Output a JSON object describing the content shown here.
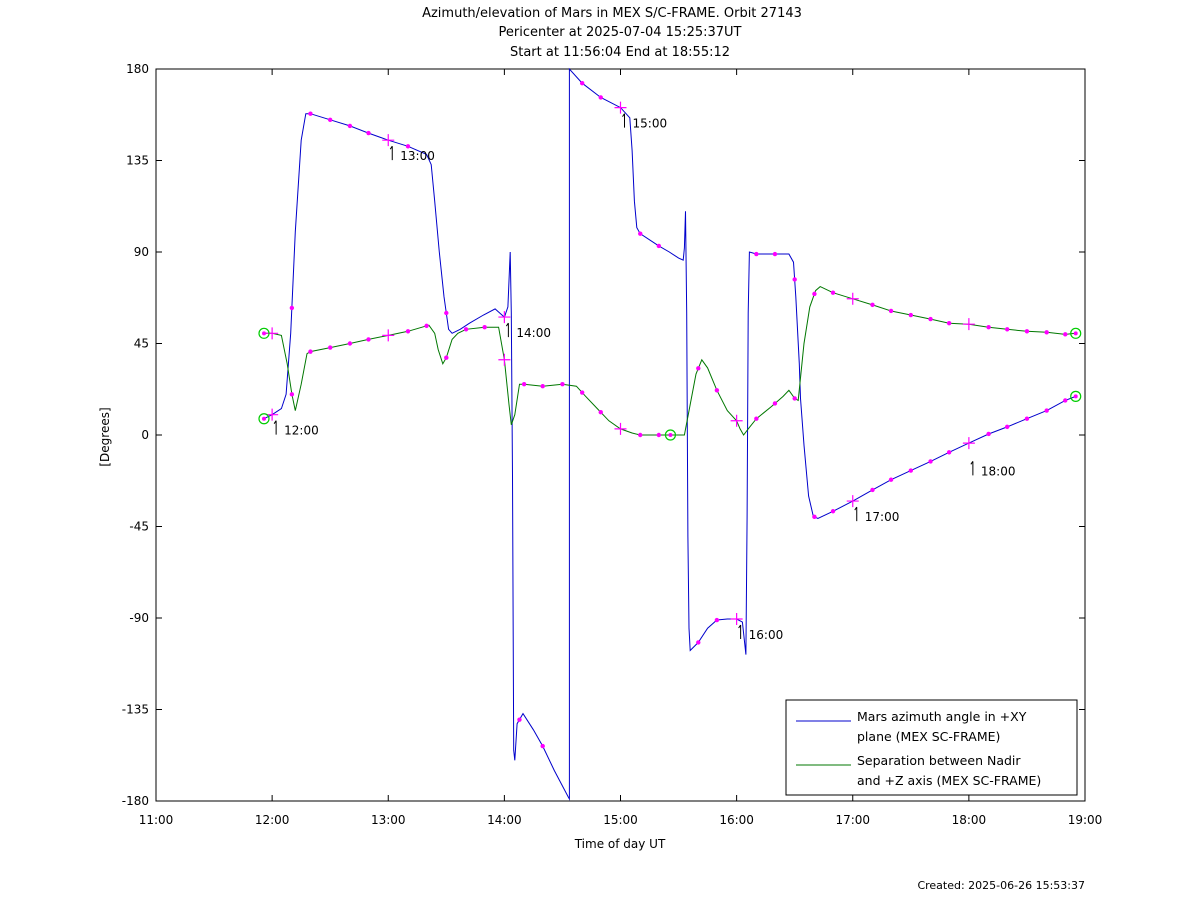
{
  "figure": {
    "title_lines": [
      "Azimuth/elevation of Mars in MEX S/C-FRAME.  Orbit 27143",
      "Pericenter at 2025-07-04 15:25:37UT",
      "Start at 11:56:04 End at 18:55:12"
    ],
    "footer": "Created: 2025-06-26 15:53:37"
  },
  "chart_data": {
    "type": "line",
    "title": "Azimuth/elevation of Mars in MEX S/C-FRAME.  Orbit 27143",
    "xlabel": "Time of day UT",
    "ylabel": "[Degrees]",
    "xlim": [
      11.0,
      19.0
    ],
    "ylim": [
      -180,
      180
    ],
    "x_ticks": [
      {
        "v": 11,
        "label": "11:00"
      },
      {
        "v": 12,
        "label": "12:00"
      },
      {
        "v": 13,
        "label": "13:00"
      },
      {
        "v": 14,
        "label": "14:00"
      },
      {
        "v": 15,
        "label": "15:00"
      },
      {
        "v": 16,
        "label": "16:00"
      },
      {
        "v": 17,
        "label": "17:00"
      },
      {
        "v": 18,
        "label": "18:00"
      },
      {
        "v": 19,
        "label": "19:00"
      }
    ],
    "y_ticks": [
      {
        "v": 180,
        "label": "180"
      },
      {
        "v": 135,
        "label": "135"
      },
      {
        "v": 90,
        "label": "90"
      },
      {
        "v": 45,
        "label": "45"
      },
      {
        "v": 0,
        "label": "0"
      },
      {
        "v": -45,
        "label": "-45"
      },
      {
        "v": -90,
        "label": "-90"
      },
      {
        "v": -135,
        "label": "-135"
      },
      {
        "v": -180,
        "label": "-180"
      }
    ],
    "grid": false,
    "legend_position": "bottom-right",
    "series": [
      {
        "name": "Mars azimuth angle in +XY plane (MEX SC-FRAME)",
        "legend_lines": [
          "Mars azimuth angle in +XY",
          "plane (MEX SC-FRAME)"
        ],
        "color": "#0000cc",
        "points": [
          [
            11.93,
            8
          ],
          [
            12.0,
            10
          ],
          [
            12.08,
            13
          ],
          [
            12.12,
            20
          ],
          [
            12.16,
            50
          ],
          [
            12.2,
            100
          ],
          [
            12.25,
            145
          ],
          [
            12.29,
            158
          ],
          [
            12.33,
            158
          ],
          [
            12.5,
            155
          ],
          [
            12.67,
            152
          ],
          [
            12.83,
            148.5
          ],
          [
            13.0,
            145
          ],
          [
            13.17,
            142
          ],
          [
            13.33,
            138
          ],
          [
            13.37,
            133
          ],
          [
            13.4,
            115
          ],
          [
            13.44,
            90
          ],
          [
            13.48,
            68
          ],
          [
            13.52,
            52
          ],
          [
            13.55,
            50
          ],
          [
            13.62,
            52
          ],
          [
            13.7,
            55
          ],
          [
            13.82,
            59
          ],
          [
            13.92,
            62
          ],
          [
            13.96,
            60
          ],
          [
            14.0,
            58
          ],
          [
            14.03,
            63
          ],
          [
            14.05,
            90
          ],
          [
            14.06,
            60
          ],
          [
            14.07,
            -20
          ],
          [
            14.08,
            -155
          ],
          [
            14.09,
            -160
          ],
          [
            14.11,
            -142
          ],
          [
            14.16,
            -137
          ],
          [
            14.25,
            -145
          ],
          [
            14.33,
            -153
          ],
          [
            14.43,
            -165
          ],
          [
            14.55,
            -178
          ],
          [
            14.56,
            -179
          ],
          [
            14.56,
            180
          ],
          [
            14.67,
            173
          ],
          [
            14.83,
            166
          ],
          [
            15.0,
            161
          ],
          [
            15.08,
            156
          ],
          [
            15.1,
            140
          ],
          [
            15.12,
            115
          ],
          [
            15.14,
            102
          ],
          [
            15.17,
            99
          ],
          [
            15.33,
            93
          ],
          [
            15.42,
            90
          ],
          [
            15.5,
            87
          ],
          [
            15.54,
            86
          ],
          [
            15.55,
            92
          ],
          [
            15.56,
            110
          ],
          [
            15.57,
            60
          ],
          [
            15.58,
            -50
          ],
          [
            15.59,
            -95
          ],
          [
            15.6,
            -106
          ],
          [
            15.67,
            -102
          ],
          [
            15.75,
            -95
          ],
          [
            15.83,
            -91
          ],
          [
            15.92,
            -90.5
          ],
          [
            16.0,
            -90.5
          ],
          [
            16.05,
            -92
          ],
          [
            16.08,
            -108
          ],
          [
            16.09,
            -40
          ],
          [
            16.1,
            60
          ],
          [
            16.11,
            90
          ],
          [
            16.17,
            89
          ],
          [
            16.33,
            89
          ],
          [
            16.45,
            89
          ],
          [
            16.49,
            85
          ],
          [
            16.51,
            68
          ],
          [
            16.54,
            35
          ],
          [
            16.55,
            18
          ],
          [
            16.58,
            -5
          ],
          [
            16.62,
            -30
          ],
          [
            16.66,
            -40
          ],
          [
            16.7,
            -41
          ],
          [
            16.83,
            -37.5
          ],
          [
            17.0,
            -32.5
          ],
          [
            17.17,
            -27
          ],
          [
            17.33,
            -22
          ],
          [
            17.5,
            -17.5
          ],
          [
            17.67,
            -13
          ],
          [
            17.83,
            -8.5
          ],
          [
            18.0,
            -4
          ],
          [
            18.17,
            0.5
          ],
          [
            18.33,
            4
          ],
          [
            18.5,
            8
          ],
          [
            18.67,
            12
          ],
          [
            18.83,
            17
          ],
          [
            18.92,
            19
          ]
        ],
        "markers": [
          12.0,
          13.0,
          14.0,
          15.0,
          16.0,
          17.0,
          18.0
        ],
        "dots": [
          12.17,
          12.33,
          12.5,
          12.67,
          12.83,
          13.17,
          13.5,
          14.13,
          14.33,
          14.67,
          14.83,
          15.17,
          15.33,
          15.67,
          15.83,
          16.17,
          16.33,
          16.5,
          16.67,
          16.83,
          17.17,
          17.33,
          17.5,
          17.67,
          17.83,
          18.17,
          18.33,
          18.5,
          18.67,
          18.83
        ],
        "circles": [
          11.93,
          18.92
        ]
      },
      {
        "name": "Separation between Nadir and +Z axis (MEX SC-FRAME)",
        "legend_lines": [
          "Separation between Nadir",
          "and +Z axis (MEX SC-FRAME)"
        ],
        "color": "#007700",
        "points": [
          [
            11.93,
            50
          ],
          [
            12.0,
            50
          ],
          [
            12.08,
            49
          ],
          [
            12.13,
            35
          ],
          [
            12.17,
            20
          ],
          [
            12.2,
            12
          ],
          [
            12.25,
            25
          ],
          [
            12.3,
            40
          ],
          [
            12.33,
            41
          ],
          [
            12.5,
            43
          ],
          [
            12.67,
            45
          ],
          [
            12.83,
            47
          ],
          [
            13.0,
            49
          ],
          [
            13.17,
            51
          ],
          [
            13.35,
            54
          ],
          [
            13.4,
            50
          ],
          [
            13.43,
            42
          ],
          [
            13.47,
            35
          ],
          [
            13.5,
            38
          ],
          [
            13.55,
            47
          ],
          [
            13.6,
            50
          ],
          [
            13.67,
            52
          ],
          [
            13.83,
            53
          ],
          [
            13.95,
            53
          ],
          [
            14.0,
            37
          ],
          [
            14.04,
            15
          ],
          [
            14.06,
            5
          ],
          [
            14.09,
            10
          ],
          [
            14.13,
            25
          ],
          [
            14.17,
            25
          ],
          [
            14.33,
            24
          ],
          [
            14.5,
            25
          ],
          [
            14.62,
            24
          ],
          [
            14.7,
            19
          ],
          [
            14.8,
            13
          ],
          [
            14.9,
            7
          ],
          [
            15.0,
            3
          ],
          [
            15.1,
            1
          ],
          [
            15.17,
            0
          ],
          [
            15.33,
            0
          ],
          [
            15.43,
            0
          ],
          [
            15.5,
            0
          ],
          [
            15.55,
            0
          ],
          [
            15.6,
            15
          ],
          [
            15.65,
            30
          ],
          [
            15.7,
            37
          ],
          [
            15.75,
            33
          ],
          [
            15.83,
            22
          ],
          [
            15.92,
            12
          ],
          [
            16.0,
            7
          ],
          [
            16.03,
            3
          ],
          [
            16.06,
            0
          ],
          [
            16.1,
            3
          ],
          [
            16.17,
            8
          ],
          [
            16.3,
            14
          ],
          [
            16.4,
            19
          ],
          [
            16.45,
            22
          ],
          [
            16.5,
            18
          ],
          [
            16.53,
            17
          ],
          [
            16.58,
            45
          ],
          [
            16.63,
            63
          ],
          [
            16.68,
            71
          ],
          [
            16.72,
            73
          ],
          [
            16.83,
            70
          ],
          [
            17.0,
            67
          ],
          [
            17.17,
            64
          ],
          [
            17.33,
            61
          ],
          [
            17.5,
            59
          ],
          [
            17.67,
            57
          ],
          [
            17.83,
            55
          ],
          [
            18.0,
            54.5
          ],
          [
            18.17,
            53
          ],
          [
            18.33,
            52
          ],
          [
            18.5,
            51
          ],
          [
            18.67,
            50.5
          ],
          [
            18.83,
            49.5
          ],
          [
            18.92,
            50
          ]
        ],
        "markers": [
          12.0,
          13.0,
          14.0,
          15.0,
          16.0,
          17.0,
          18.0
        ],
        "dots": [
          12.17,
          12.33,
          12.5,
          12.67,
          12.83,
          13.17,
          13.33,
          13.5,
          13.67,
          13.83,
          14.17,
          14.33,
          14.5,
          14.67,
          14.83,
          15.17,
          15.33,
          15.67,
          15.83,
          16.17,
          16.33,
          16.5,
          16.67,
          16.83,
          17.17,
          17.33,
          17.5,
          17.67,
          17.83,
          18.17,
          18.33,
          18.5,
          18.67,
          18.83
        ],
        "circles": [
          11.93,
          15.43,
          18.92
        ]
      }
    ],
    "marker_color": "#ff00ff",
    "circle_color": "#00cc00",
    "time_annotations": [
      {
        "x": 12.0,
        "y": 10,
        "label": "12:00"
      },
      {
        "x": 13.0,
        "y": 145,
        "label": "13:00"
      },
      {
        "x": 14.0,
        "y": 58,
        "label": "14:00"
      },
      {
        "x": 15.0,
        "y": 161,
        "label": "15:00"
      },
      {
        "x": 16.0,
        "y": -90.5,
        "label": "16:00"
      },
      {
        "x": 17.0,
        "y": -32.5,
        "label": "17:00"
      },
      {
        "x": 18.0,
        "y": -10,
        "label": "18:00"
      }
    ]
  }
}
